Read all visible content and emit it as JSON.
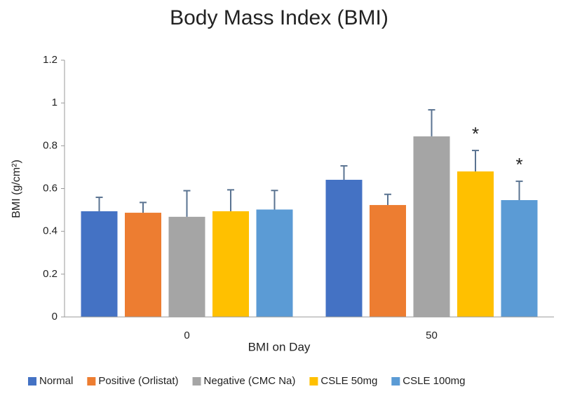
{
  "chart_data": {
    "type": "bar",
    "title": "Body Mass Index (BMI)",
    "x_label": "BMI on Day",
    "y_label": "BMI (g/cm²)",
    "categories": [
      "0",
      "50"
    ],
    "series": [
      {
        "name": "Normal",
        "color": "#4472c4",
        "values": [
          0.494,
          0.641
        ],
        "errors": [
          0.065,
          0.065
        ]
      },
      {
        "name": "Positive (Orlistat)",
        "color": "#ed7d31",
        "values": [
          0.487,
          0.523
        ],
        "errors": [
          0.048,
          0.05
        ]
      },
      {
        "name": "Negative (CMC Na)",
        "color": "#a5a5a5",
        "values": [
          0.468,
          0.844
        ],
        "errors": [
          0.122,
          0.124
        ]
      },
      {
        "name": "CSLE 50mg",
        "color": "#ffc000",
        "values": [
          0.494,
          0.68
        ],
        "errors": [
          0.1,
          0.098
        ]
      },
      {
        "name": "CSLE 100mg",
        "color": "#5b9bd5",
        "values": [
          0.502,
          0.546
        ],
        "errors": [
          0.089,
          0.088
        ]
      }
    ],
    "annotations": [
      {
        "text": "*",
        "series": 3,
        "category": 1
      },
      {
        "text": "*",
        "series": 4,
        "category": 1
      }
    ],
    "ylim": [
      0,
      1.2
    ],
    "yticks": [
      0,
      0.2,
      0.4,
      0.6,
      0.8,
      1,
      1.2
    ],
    "grid": false,
    "legend": "bottom"
  }
}
